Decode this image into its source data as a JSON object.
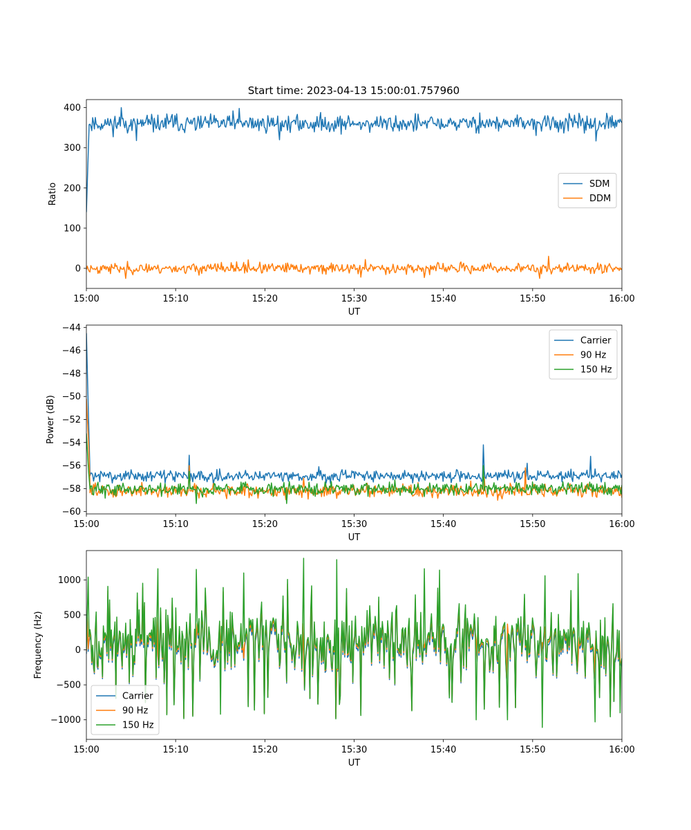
{
  "title": "Start time: 2023-04-13 15:00:01.757960",
  "colors": {
    "blue": "#1f77b4",
    "orange": "#ff7f0e",
    "green": "#2ca02c"
  },
  "chart_data": [
    {
      "type": "line",
      "title": "Start time: 2023-04-13 15:00:01.757960",
      "xlabel": "UT",
      "ylabel": "Ratio",
      "x_ticks": [
        "15:00",
        "15:10",
        "15:20",
        "15:30",
        "15:40",
        "15:50",
        "16:00"
      ],
      "xlim_minutes": [
        0,
        60
      ],
      "ylim": [
        -50,
        420
      ],
      "y_ticks": [
        0,
        100,
        200,
        300,
        400
      ],
      "legend_position": "center-right",
      "series": [
        {
          "name": "SDM",
          "color": "#1f77b4",
          "baseline": 360,
          "noise": 15,
          "spike_pts": [
            [
              0,
              140
            ],
            [
              0.3,
              352
            ]
          ],
          "seed": 11,
          "peaks": [
            [
              3.9,
              400
            ],
            [
              17.1,
              398
            ],
            [
              16.4,
              392
            ],
            [
              44.1,
              387
            ],
            [
              58.3,
              386
            ],
            [
              9.6,
              383
            ],
            [
              57.1,
              317
            ],
            [
              5.6,
              318
            ],
            [
              21.6,
              320
            ]
          ]
        },
        {
          "name": "DDM",
          "color": "#ff7f0e",
          "baseline": 0,
          "noise": 9,
          "seed": 23,
          "peaks": [
            [
              51.8,
              30
            ],
            [
              31.3,
              22
            ],
            [
              18.1,
              21
            ],
            [
              4.4,
              -25
            ],
            [
              50.8,
              -25
            ],
            [
              37.9,
              -23
            ],
            [
              30.8,
              -22
            ]
          ]
        }
      ]
    },
    {
      "type": "line",
      "xlabel": "UT",
      "ylabel": "Power (dB)",
      "x_ticks": [
        "15:00",
        "15:10",
        "15:20",
        "15:30",
        "15:40",
        "15:50",
        "16:00"
      ],
      "xlim_minutes": [
        0,
        60
      ],
      "ylim": [
        -60.2,
        -43.8
      ],
      "y_ticks": [
        -60,
        -58,
        -56,
        -54,
        -52,
        -50,
        -48,
        -46,
        -44
      ],
      "legend_position": "top-right",
      "series": [
        {
          "name": "Carrier",
          "color": "#1f77b4",
          "baseline": -56.9,
          "noise": 0.35,
          "spike_pts": [
            [
              0,
              -44.5
            ],
            [
              0.25,
              -52
            ],
            [
              0.4,
              -56.6
            ]
          ],
          "seed": 31,
          "peaks": [
            [
              11.5,
              -55.1
            ],
            [
              44.5,
              -54.2
            ],
            [
              56.5,
              -55.2
            ],
            [
              49.4,
              -55.8
            ],
            [
              26,
              -56.1
            ]
          ]
        },
        {
          "name": "90 Hz",
          "color": "#ff7f0e",
          "baseline": -58.2,
          "noise": 0.4,
          "spike_pts": [
            [
              0,
              -50.2
            ],
            [
              0.25,
              -54
            ],
            [
              0.4,
              -57.6
            ]
          ],
          "seed": 47,
          "peaks": [
            [
              11.5,
              -56.0
            ],
            [
              24.3,
              -57.1
            ],
            [
              49.2,
              -56.2
            ],
            [
              44.6,
              -57.0
            ]
          ]
        },
        {
          "name": "150 Hz",
          "color": "#2ca02c",
          "baseline": -58.0,
          "noise": 0.4,
          "spike_pts": [
            [
              0,
              -53.2
            ],
            [
              0.25,
              -56.5
            ],
            [
              0.4,
              -58
            ]
          ],
          "seed": 59,
          "peaks": [
            [
              44.5,
              -56.0
            ],
            [
              11.5,
              -56.5
            ],
            [
              12.3,
              -59.3
            ],
            [
              22.4,
              -59.3
            ]
          ]
        }
      ]
    },
    {
      "type": "line",
      "xlabel": "UT",
      "ylabel": "Frequency (Hz)",
      "x_ticks": [
        "15:00",
        "15:10",
        "15:20",
        "15:30",
        "15:40",
        "15:50",
        "16:00"
      ],
      "xlim_minutes": [
        0,
        60
      ],
      "ylim": [
        -1280,
        1420
      ],
      "y_ticks": [
        -1000,
        -500,
        0,
        500,
        1000
      ],
      "legend_position": "bottom-left",
      "series": [
        {
          "name": "Carrier",
          "color": "#1f77b4",
          "scale": 0.92,
          "offset": -60,
          "seed": 71
        },
        {
          "name": "90 Hz",
          "color": "#ff7f0e",
          "scale": 0.96,
          "offset": -25,
          "seed": 71
        },
        {
          "name": "150 Hz",
          "color": "#2ca02c",
          "scale": 1.0,
          "offset": 0,
          "seed": 71,
          "peaks": [
            [
              0.2,
              1040
            ],
            [
              8,
              1160
            ],
            [
              12.3,
              1150
            ],
            [
              17.6,
              1100
            ],
            [
              24.3,
              1310
            ],
            [
              28,
              1290
            ],
            [
              37.9,
              1160
            ],
            [
              39.6,
              1140
            ],
            [
              51.4,
              1060
            ],
            [
              55.1,
              1090
            ],
            [
              15,
              -920
            ],
            [
              43.7,
              -1000
            ],
            [
              47.2,
              -1000
            ],
            [
              51.1,
              -1110
            ],
            [
              57,
              -1030
            ],
            [
              59.8,
              -900
            ]
          ]
        }
      ]
    }
  ]
}
